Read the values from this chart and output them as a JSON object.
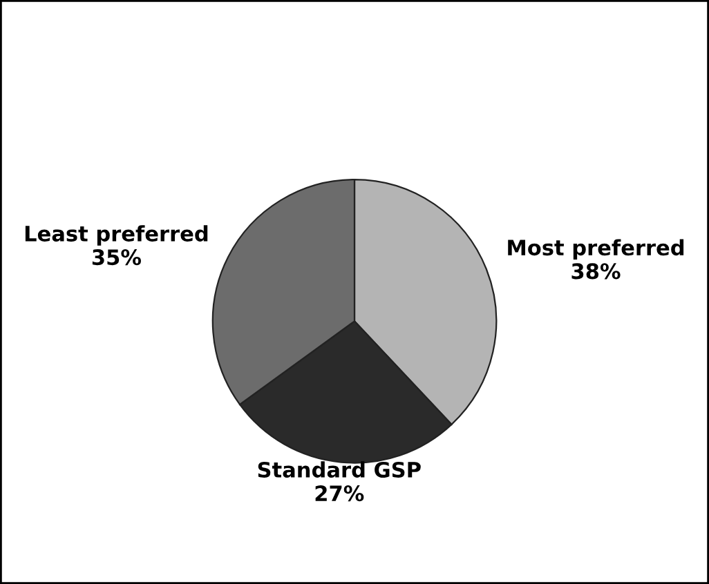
{
  "chart_data": {
    "type": "pie",
    "categories": [
      "Most preferred",
      "Standard GSP",
      "Least preferred"
    ],
    "values": [
      38,
      27,
      35
    ],
    "value_labels": [
      "38%",
      "27%",
      "35%"
    ],
    "colors": [
      "#b4b4b4",
      "#2a2a2a",
      "#6c6c6c"
    ],
    "legend": false
  }
}
